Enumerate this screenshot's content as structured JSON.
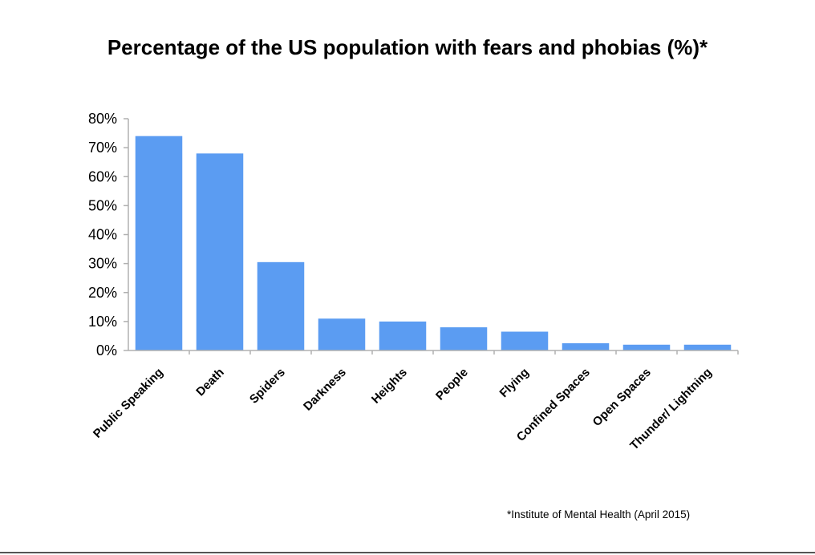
{
  "chart_data": {
    "type": "bar",
    "title": "Percentage of the US population with fears and phobias (%)*",
    "categories": [
      "Public Speaking",
      "Death",
      "Spiders",
      "Darkness",
      "Heights",
      "People",
      "Flying",
      "Confined Spaces",
      "Open Spaces",
      "Thunder/ Lightning"
    ],
    "values": [
      74,
      68,
      30.5,
      11,
      10,
      8,
      6.5,
      2.5,
      2,
      2
    ],
    "ylim": [
      0,
      80
    ],
    "yticks": [
      "0%",
      "10%",
      "20%",
      "30%",
      "40%",
      "50%",
      "60%",
      "70%",
      "80%"
    ],
    "ytick_values": [
      0,
      10,
      20,
      30,
      40,
      50,
      60,
      70,
      80
    ],
    "xlabel": "",
    "ylabel": "",
    "grid": false,
    "bar_color": "#5b9cf2",
    "source_note": "*Institute of Mental Health (April 2015)"
  }
}
